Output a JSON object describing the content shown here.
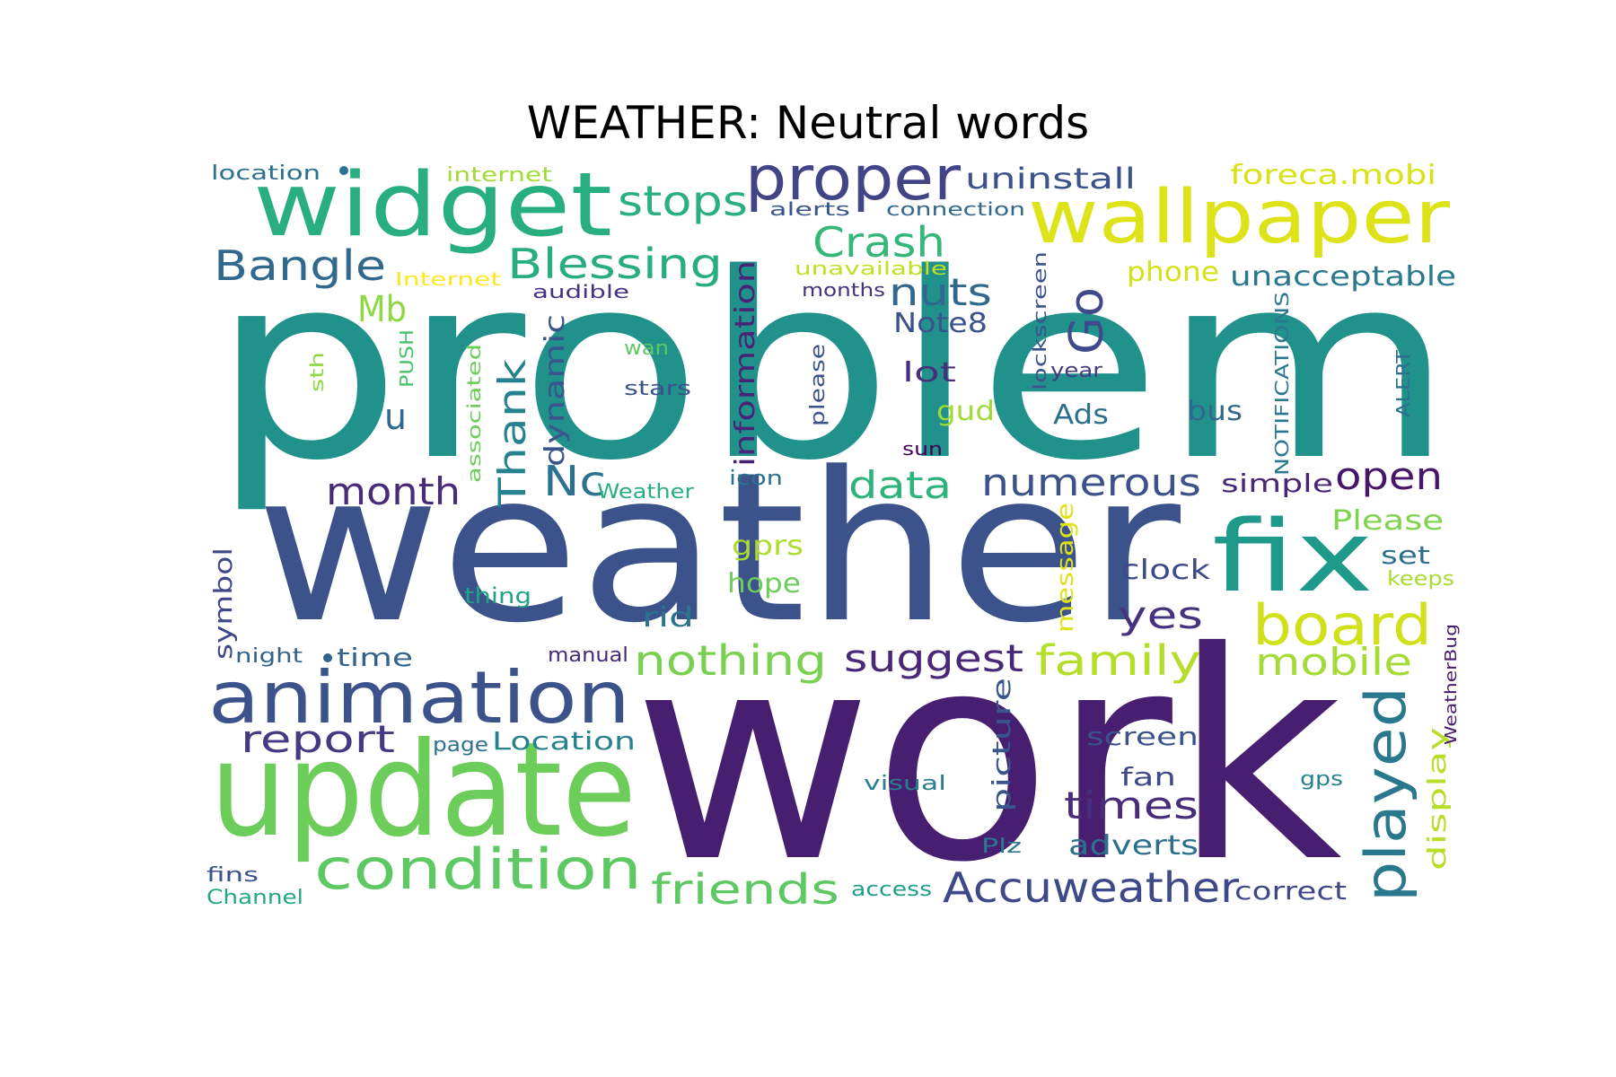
{
  "title": "WEATHER: Neutral words",
  "words": [
    {
      "text": "problem",
      "color": "#21918c"
    },
    {
      "text": "weather",
      "color": "#3b528b"
    },
    {
      "text": "work",
      "color": "#481f70"
    },
    {
      "text": "update",
      "color": "#6ccd5a"
    },
    {
      "text": "widget",
      "color": "#29af7f"
    },
    {
      "text": "wallpaper",
      "color": "#dde318"
    },
    {
      "text": "fix",
      "color": "#1f9a8a"
    },
    {
      "text": "animation",
      "color": "#3b528b"
    },
    {
      "text": "proper",
      "color": "#414487"
    },
    {
      "text": "condition",
      "color": "#5ec962"
    },
    {
      "text": "board",
      "color": "#d0e11c"
    },
    {
      "text": "played",
      "color": "#2a788e"
    },
    {
      "text": "Accuweather",
      "color": "#3e4989"
    },
    {
      "text": "friends",
      "color": "#5ec962"
    },
    {
      "text": "Blessing",
      "color": "#27ad81"
    },
    {
      "text": "Bangle",
      "color": "#31688e"
    },
    {
      "text": "stops",
      "color": "#2ab07f"
    },
    {
      "text": "Crash",
      "color": "#35b779"
    },
    {
      "text": "nothing",
      "color": "#7ad151"
    },
    {
      "text": "family",
      "color": "#b5de2b"
    },
    {
      "text": "suggest",
      "color": "#482878"
    },
    {
      "text": "numerous",
      "color": "#3b528b"
    },
    {
      "text": "mobile",
      "color": "#a5db36"
    },
    {
      "text": "yes",
      "color": "#46327e"
    },
    {
      "text": "times",
      "color": "#472d7b"
    },
    {
      "text": "month",
      "color": "#472c7a"
    },
    {
      "text": "report",
      "color": "#443983"
    },
    {
      "text": "data",
      "color": "#2eb37c"
    },
    {
      "text": "nuts",
      "color": "#31688e"
    },
    {
      "text": "Go",
      "color": "#3e4a89"
    },
    {
      "text": "Thank",
      "color": "#26828e"
    },
    {
      "text": "Nc",
      "color": "#2c728e"
    },
    {
      "text": "open",
      "color": "#481668"
    },
    {
      "text": "uninstall",
      "color": "#3b528b"
    },
    {
      "text": "foreca.mobi",
      "color": "#d8e219"
    },
    {
      "text": "unacceptable",
      "color": "#2a788e"
    },
    {
      "text": "phone",
      "color": "#d2e21b"
    },
    {
      "text": "Mb",
      "color": "#8fd744"
    },
    {
      "text": "u",
      "color": "#306a8e"
    },
    {
      "text": "dynamic",
      "color": "#3a548c"
    },
    {
      "text": "information",
      "color": "#482475"
    },
    {
      "text": "Note8",
      "color": "#3b528b"
    },
    {
      "text": "lot",
      "color": "#472f7d"
    },
    {
      "text": "gud",
      "color": "#a0da39"
    },
    {
      "text": "Ads",
      "color": "#2d708e"
    },
    {
      "text": "bus",
      "color": "#31688e"
    },
    {
      "text": "simple",
      "color": "#482677"
    },
    {
      "text": "Please",
      "color": "#7fd34e"
    },
    {
      "text": "clock",
      "color": "#3e4989"
    },
    {
      "text": "set",
      "color": "#2d708e"
    },
    {
      "text": "keeps",
      "color": "#a8db34"
    },
    {
      "text": "gprs",
      "color": "#addc30"
    },
    {
      "text": "hope",
      "color": "#6ccd5a"
    },
    {
      "text": "rid",
      "color": "#2b748e"
    },
    {
      "text": "time",
      "color": "#33638d"
    },
    {
      "text": "symbol",
      "color": "#3f4889"
    },
    {
      "text": "night",
      "color": "#33638d"
    },
    {
      "text": "thing",
      "color": "#20a386"
    },
    {
      "text": "manual",
      "color": "#482979"
    },
    {
      "text": "message",
      "color": "#dde318"
    },
    {
      "text": "screen",
      "color": "#3b528b"
    },
    {
      "text": "fan",
      "color": "#3f4889"
    },
    {
      "text": "adverts",
      "color": "#2d708e"
    },
    {
      "text": "picture",
      "color": "#39568c"
    },
    {
      "text": "display",
      "color": "#b8de29"
    },
    {
      "text": "WeatherBug",
      "color": "#481a6c"
    },
    {
      "text": "gps",
      "color": "#26828e"
    },
    {
      "text": "visual",
      "color": "#287d8e"
    },
    {
      "text": "Plz",
      "color": "#2a788e"
    },
    {
      "text": "access",
      "color": "#1f9e89"
    },
    {
      "text": "correct",
      "color": "#3f4788"
    },
    {
      "text": "Location",
      "color": "#26828e"
    },
    {
      "text": "page",
      "color": "#2c718e"
    },
    {
      "text": "fins",
      "color": "#3b528b"
    },
    {
      "text": "Channel",
      "color": "#22a884"
    },
    {
      "text": "location",
      "color": "#2c728e"
    },
    {
      "text": "internet",
      "color": "#a2da37"
    },
    {
      "text": "Internet",
      "color": "#fde725"
    },
    {
      "text": "alerts",
      "color": "#39568c"
    },
    {
      "text": "connection",
      "color": "#31688e"
    },
    {
      "text": "unavailable",
      "color": "#c2df23"
    },
    {
      "text": "months",
      "color": "#46317e"
    },
    {
      "text": "audible",
      "color": "#46327e"
    },
    {
      "text": "wan",
      "color": "#5ec962"
    },
    {
      "text": "stars",
      "color": "#3b528b"
    },
    {
      "text": "please",
      "color": "#3b528b"
    },
    {
      "text": "lockscreen",
      "color": "#3b528b"
    },
    {
      "text": "year",
      "color": "#443a83"
    },
    {
      "text": "NOTIFICATIONS",
      "color": "#2a788e"
    },
    {
      "text": "ALERT",
      "color": "#2d708e"
    },
    {
      "text": "PUSH",
      "color": "#4ac16d"
    },
    {
      "text": "sth",
      "color": "#8fd744"
    },
    {
      "text": "associated",
      "color": "#6ccd5a"
    },
    {
      "text": "sun",
      "color": "#440154"
    },
    {
      "text": "icon",
      "color": "#2c718e"
    },
    {
      "text": "Weather",
      "color": "#29af7f"
    }
  ]
}
